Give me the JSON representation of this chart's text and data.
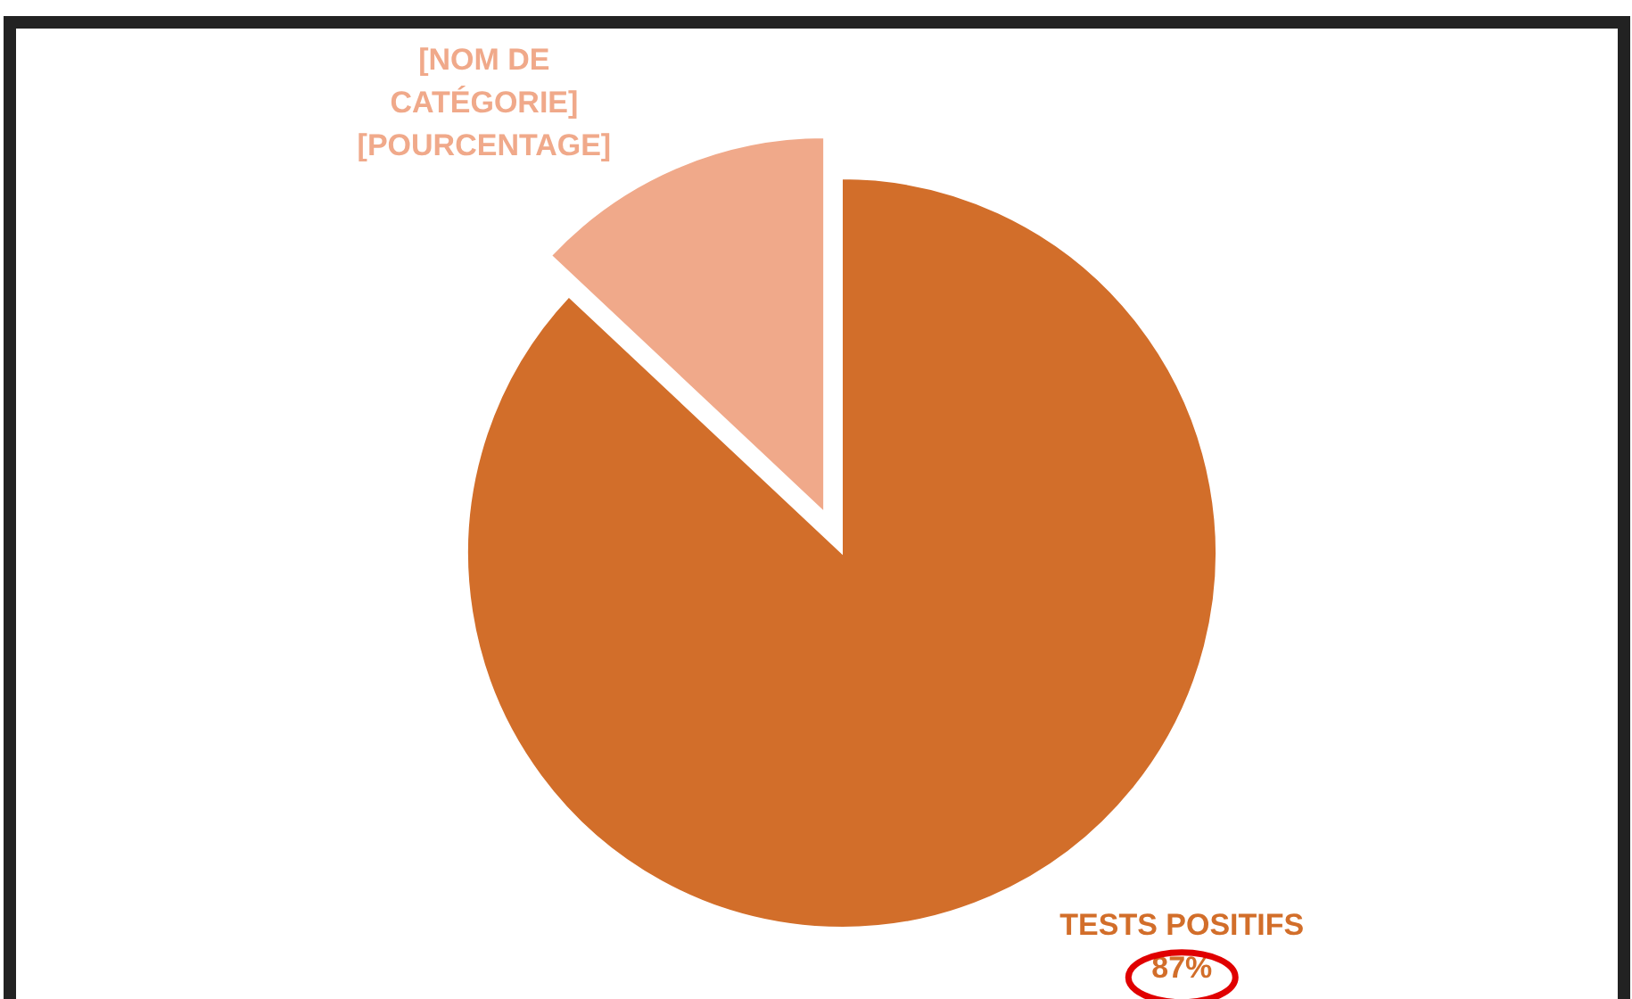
{
  "chart_data": {
    "type": "pie",
    "categories": [
      "TESTS POSITIFS",
      "[NOM DE CATÉGORIE]"
    ],
    "values": [
      87,
      13
    ],
    "value_labels": [
      "87%",
      "[POURCENTAGE]"
    ],
    "colors": [
      "#d26e2a",
      "#f0a98a"
    ]
  }
}
